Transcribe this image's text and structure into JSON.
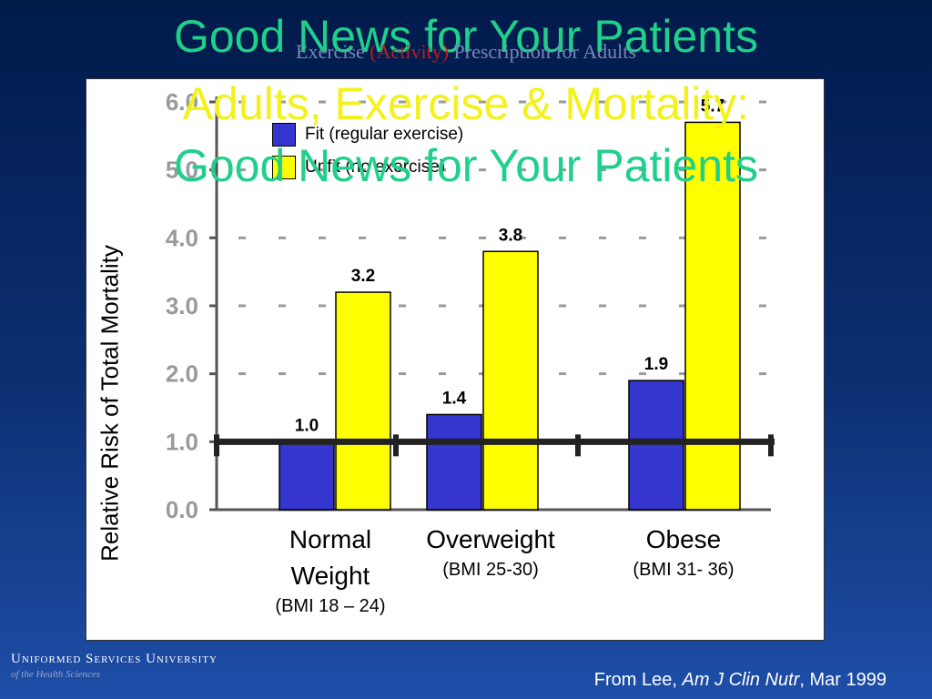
{
  "slide": {
    "title_lines": [
      "Good News for Your Patients",
      "Adults, Exercise & Mortality:",
      "Good News for Your Patients"
    ],
    "subtitle": {
      "pre": "Exercise ",
      "highlight": "(Activity)",
      "post": " Prescription for Adults"
    },
    "institution": {
      "name": "Uniformed Services University",
      "subname": "of the Health Sciences"
    },
    "citation": {
      "pre": "From Lee, ",
      "journal": "Am J Clin Nutr",
      "post": ", Mar 1999"
    }
  },
  "colors": {
    "fit": "#3535d0",
    "unfit": "#ffff00",
    "title_green": "#1fcf8a",
    "title_yellow": "#f2f21a"
  },
  "chart_data": {
    "type": "bar",
    "categories": [
      "Normal Weight",
      "Overweight",
      "Obese"
    ],
    "category_labels": [
      {
        "name_lines": [
          "Normal",
          "Weight"
        ],
        "sub": "(BMI 18 – 24)"
      },
      {
        "name_lines": [
          "Overweight"
        ],
        "sub": "(BMI 25-30)"
      },
      {
        "name_lines": [
          "Obese"
        ],
        "sub": "(BMI 31- 36)"
      }
    ],
    "series": [
      {
        "name": "Fit (regular exercise)",
        "values": [
          1.0,
          1.4,
          1.9
        ],
        "labels": [
          "1.0",
          "1.4",
          "1.9"
        ]
      },
      {
        "name": "Unfit (no exercise)",
        "values": [
          3.2,
          3.8,
          5.7
        ],
        "labels": [
          "3.2",
          "3.8",
          "5.7"
        ]
      }
    ],
    "ylabel": "Relative Risk of Total Mortality",
    "yticks": [
      "0.0",
      "1.0",
      "2.0",
      "3.0",
      "4.0",
      "5.0",
      "6.0"
    ],
    "ylim": [
      0,
      6
    ],
    "reference_line": 1.0,
    "legend": "top-left"
  }
}
